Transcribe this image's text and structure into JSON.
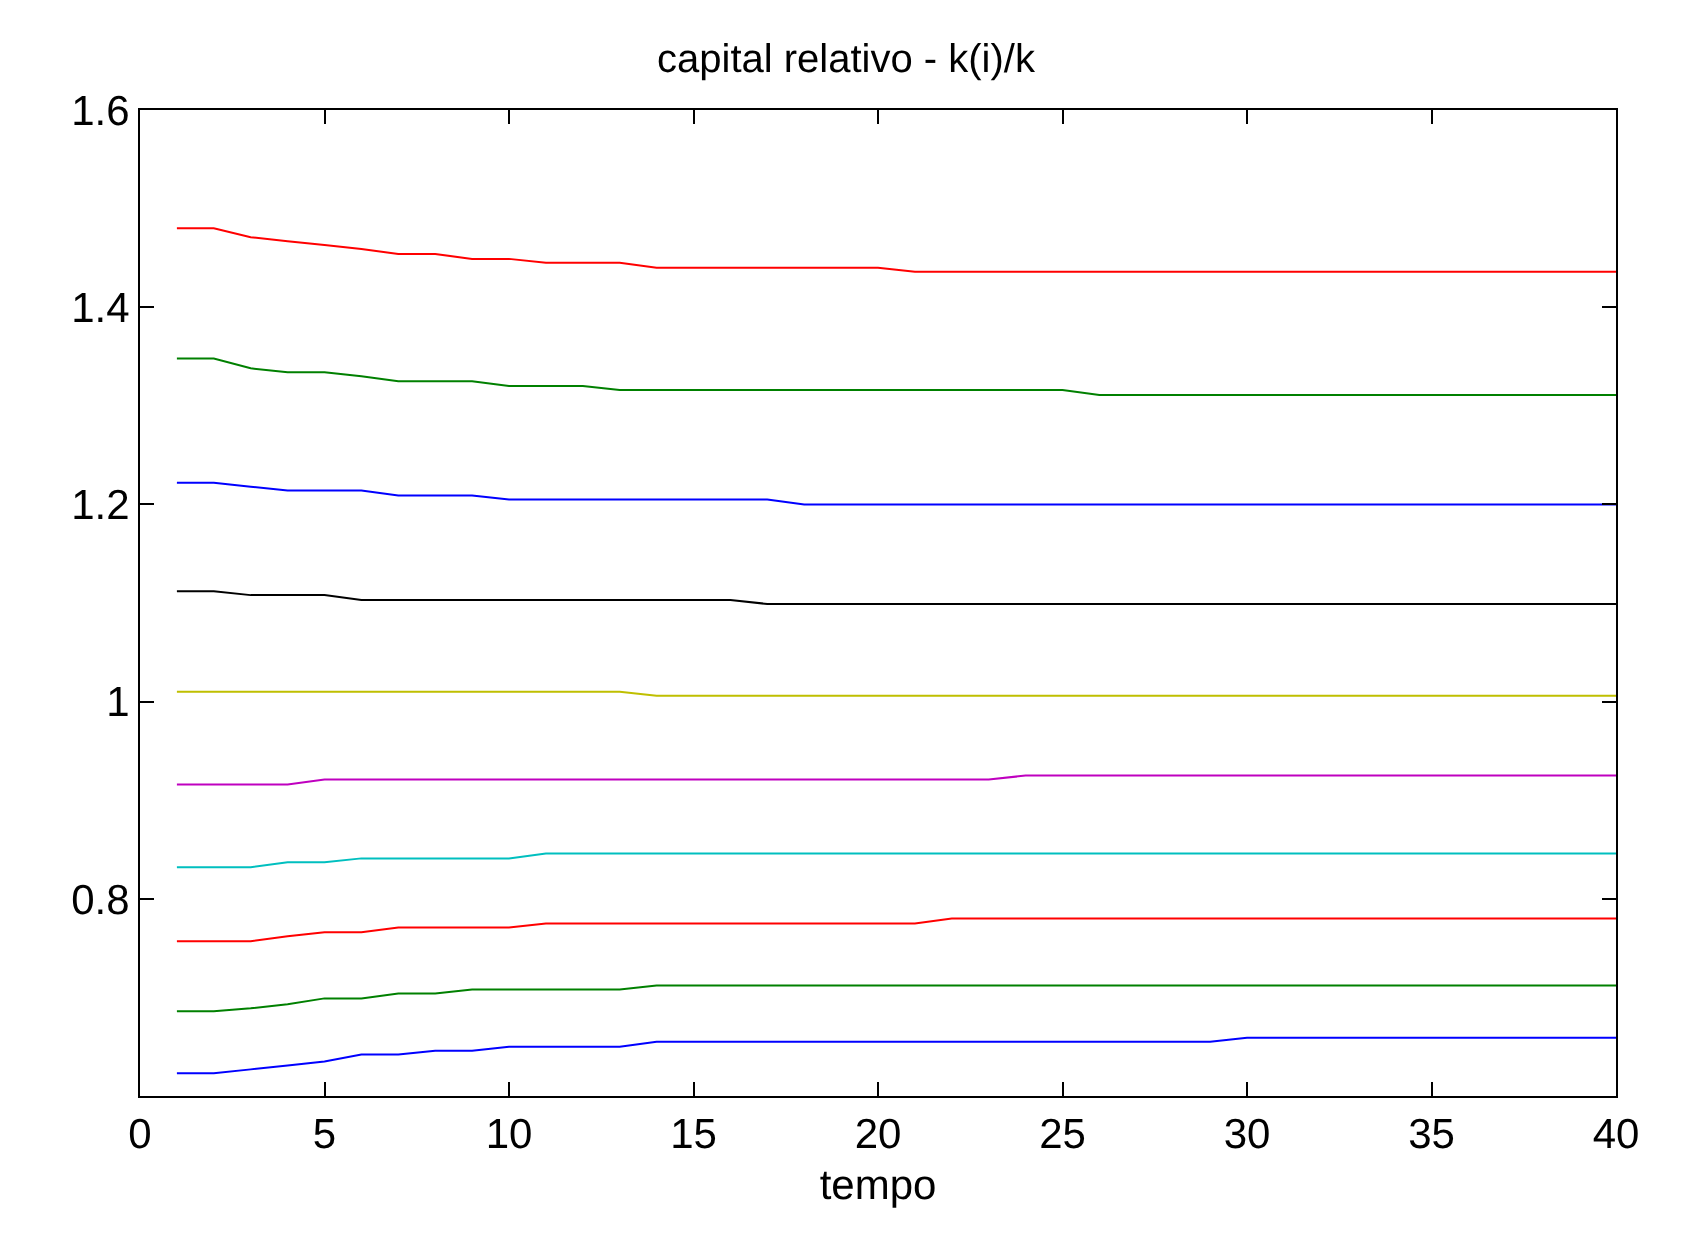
{
  "chart_data": {
    "type": "line",
    "title": "capital relativo - k(i)/k",
    "xlabel": "tempo",
    "x": [
      1,
      2,
      3,
      4,
      5,
      6,
      7,
      8,
      9,
      10,
      11,
      12,
      13,
      14,
      15,
      16,
      17,
      18,
      19,
      20,
      21,
      22,
      23,
      24,
      25,
      26,
      27,
      28,
      29,
      30,
      31,
      32,
      33,
      34,
      35,
      36,
      37,
      38,
      39,
      40
    ],
    "xlim": [
      0,
      40
    ],
    "xticks": [
      0,
      5,
      10,
      15,
      20,
      25,
      30,
      35,
      40
    ],
    "ylim": [
      0.6,
      1.6
    ],
    "yticks": [
      0.8,
      1,
      1.2,
      1.4,
      1.6
    ],
    "marker": "none",
    "line_style": "solid",
    "series": [
      {
        "color": "#ff0000",
        "values": [
          1.48,
          1.48,
          1.471,
          1.467,
          1.463,
          1.459,
          1.454,
          1.454,
          1.449,
          1.449,
          1.445,
          1.445,
          1.445,
          1.44,
          1.44,
          1.44,
          1.44,
          1.44,
          1.44,
          1.44,
          1.436,
          1.436,
          1.436,
          1.436,
          1.436,
          1.436,
          1.436,
          1.436,
          1.436,
          1.436,
          1.436,
          1.436,
          1.436,
          1.436,
          1.436,
          1.436,
          1.436,
          1.436,
          1.436,
          1.436
        ]
      },
      {
        "color": "#008000",
        "values": [
          1.348,
          1.348,
          1.338,
          1.334,
          1.334,
          1.33,
          1.325,
          1.325,
          1.325,
          1.32,
          1.32,
          1.32,
          1.316,
          1.316,
          1.316,
          1.316,
          1.316,
          1.316,
          1.316,
          1.316,
          1.316,
          1.316,
          1.316,
          1.316,
          1.316,
          1.311,
          1.311,
          1.311,
          1.311,
          1.311,
          1.311,
          1.311,
          1.311,
          1.311,
          1.311,
          1.311,
          1.311,
          1.311,
          1.311,
          1.311
        ]
      },
      {
        "color": "#0000ff",
        "values": [
          1.222,
          1.222,
          1.218,
          1.214,
          1.214,
          1.214,
          1.209,
          1.209,
          1.209,
          1.205,
          1.205,
          1.205,
          1.205,
          1.205,
          1.205,
          1.205,
          1.205,
          1.2,
          1.2,
          1.2,
          1.2,
          1.2,
          1.2,
          1.2,
          1.2,
          1.2,
          1.2,
          1.2,
          1.2,
          1.2,
          1.2,
          1.2,
          1.2,
          1.2,
          1.2,
          1.2,
          1.2,
          1.2,
          1.2,
          1.2
        ]
      },
      {
        "color": "#000000",
        "values": [
          1.112,
          1.112,
          1.108,
          1.108,
          1.108,
          1.103,
          1.103,
          1.103,
          1.103,
          1.103,
          1.103,
          1.103,
          1.103,
          1.103,
          1.103,
          1.103,
          1.099,
          1.099,
          1.099,
          1.099,
          1.099,
          1.099,
          1.099,
          1.099,
          1.099,
          1.099,
          1.099,
          1.099,
          1.099,
          1.099,
          1.099,
          1.099,
          1.099,
          1.099,
          1.099,
          1.099,
          1.099,
          1.099,
          1.099,
          1.099
        ]
      },
      {
        "color": "#bfbf00",
        "values": [
          1.01,
          1.01,
          1.01,
          1.01,
          1.01,
          1.01,
          1.01,
          1.01,
          1.01,
          1.01,
          1.01,
          1.01,
          1.01,
          1.006,
          1.006,
          1.006,
          1.006,
          1.006,
          1.006,
          1.006,
          1.006,
          1.006,
          1.006,
          1.006,
          1.006,
          1.006,
          1.006,
          1.006,
          1.006,
          1.006,
          1.006,
          1.006,
          1.006,
          1.006,
          1.006,
          1.006,
          1.006,
          1.006,
          1.006,
          1.006
        ]
      },
      {
        "color": "#bf00bf",
        "values": [
          0.916,
          0.916,
          0.916,
          0.916,
          0.921,
          0.921,
          0.921,
          0.921,
          0.921,
          0.921,
          0.921,
          0.921,
          0.921,
          0.921,
          0.921,
          0.921,
          0.921,
          0.921,
          0.921,
          0.921,
          0.921,
          0.921,
          0.921,
          0.925,
          0.925,
          0.925,
          0.925,
          0.925,
          0.925,
          0.925,
          0.925,
          0.925,
          0.925,
          0.925,
          0.925,
          0.925,
          0.925,
          0.925,
          0.925,
          0.925
        ]
      },
      {
        "color": "#00bfbf",
        "values": [
          0.832,
          0.832,
          0.832,
          0.837,
          0.837,
          0.841,
          0.841,
          0.841,
          0.841,
          0.841,
          0.846,
          0.846,
          0.846,
          0.846,
          0.846,
          0.846,
          0.846,
          0.846,
          0.846,
          0.846,
          0.846,
          0.846,
          0.846,
          0.846,
          0.846,
          0.846,
          0.846,
          0.846,
          0.846,
          0.846,
          0.846,
          0.846,
          0.846,
          0.846,
          0.846,
          0.846,
          0.846,
          0.846,
          0.846,
          0.846
        ]
      },
      {
        "color": "#ff0000",
        "values": [
          0.757,
          0.757,
          0.757,
          0.762,
          0.766,
          0.766,
          0.771,
          0.771,
          0.771,
          0.771,
          0.775,
          0.775,
          0.775,
          0.775,
          0.775,
          0.775,
          0.775,
          0.775,
          0.775,
          0.775,
          0.775,
          0.78,
          0.78,
          0.78,
          0.78,
          0.78,
          0.78,
          0.78,
          0.78,
          0.78,
          0.78,
          0.78,
          0.78,
          0.78,
          0.78,
          0.78,
          0.78,
          0.78,
          0.78,
          0.78
        ]
      },
      {
        "color": "#008000",
        "values": [
          0.686,
          0.686,
          0.689,
          0.693,
          0.699,
          0.699,
          0.704,
          0.704,
          0.708,
          0.708,
          0.708,
          0.708,
          0.708,
          0.712,
          0.712,
          0.712,
          0.712,
          0.712,
          0.712,
          0.712,
          0.712,
          0.712,
          0.712,
          0.712,
          0.712,
          0.712,
          0.712,
          0.712,
          0.712,
          0.712,
          0.712,
          0.712,
          0.712,
          0.712,
          0.712,
          0.712,
          0.712,
          0.712,
          0.712,
          0.712
        ]
      },
      {
        "color": "#0000ff",
        "values": [
          0.623,
          0.623,
          0.627,
          0.631,
          0.635,
          0.642,
          0.642,
          0.646,
          0.646,
          0.65,
          0.65,
          0.65,
          0.65,
          0.655,
          0.655,
          0.655,
          0.655,
          0.655,
          0.655,
          0.655,
          0.655,
          0.655,
          0.655,
          0.655,
          0.655,
          0.655,
          0.655,
          0.655,
          0.655,
          0.659,
          0.659,
          0.659,
          0.659,
          0.659,
          0.659,
          0.659,
          0.659,
          0.659,
          0.659,
          0.659
        ]
      }
    ]
  }
}
